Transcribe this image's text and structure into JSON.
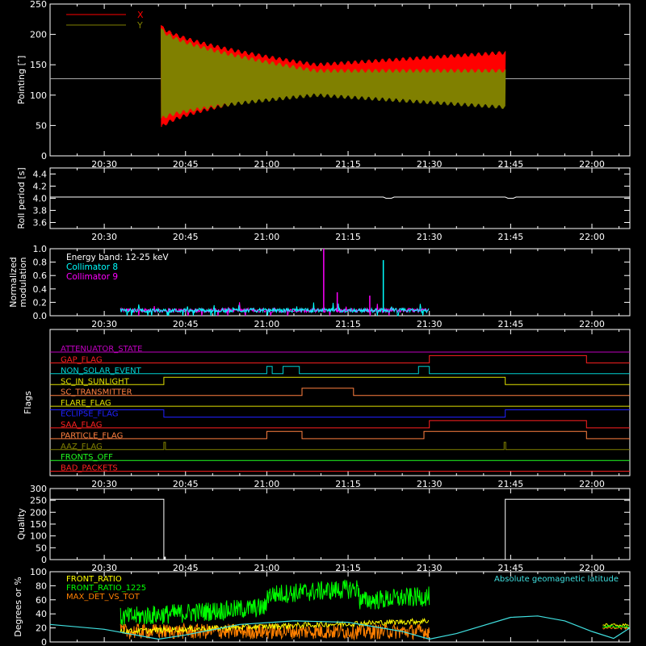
{
  "x_ticks": [
    "20:30",
    "20:45",
    "21:00",
    "21:15",
    "21:30",
    "21:45",
    "22:00"
  ],
  "x_tick_minutes": [
    30,
    45,
    60,
    75,
    90,
    105,
    120
  ],
  "x_range_minutes": [
    20,
    127
  ],
  "panels": {
    "pointing": {
      "ylabel": "Pointing [″]",
      "yticks": [
        "0",
        "50",
        "100",
        "150",
        "200",
        "250"
      ],
      "ylim": [
        0,
        250
      ],
      "legend": [
        {
          "label": "X",
          "color": "#ff0000"
        },
        {
          "label": "Y",
          "color": "#808000"
        }
      ]
    },
    "roll": {
      "ylabel": "Roll period [s]",
      "yticks": [
        "3.6",
        "3.8",
        "4.0",
        "4.2",
        "4.4"
      ],
      "ylim": [
        3.5,
        4.5
      ]
    },
    "modulation": {
      "ylabel_line1": "Normalized",
      "ylabel_line2": "modulation",
      "yticks": [
        "0.0",
        "0.2",
        "0.4",
        "0.6",
        "0.8",
        "1.0"
      ],
      "ylim": [
        0,
        1
      ],
      "legend": [
        {
          "label": "Energy band: 12-25 keV",
          "color": "#ffffff"
        },
        {
          "label": "Collimator 8",
          "color": "#00ffff"
        },
        {
          "label": "Collimator 9",
          "color": "#ff00ff"
        }
      ]
    },
    "flags": {
      "ylabel": "Flags",
      "names": [
        {
          "label": "ATTENUATOR_STATE",
          "color": "#c000c0"
        },
        {
          "label": "GAP_FLAG",
          "color": "#ff2020"
        },
        {
          "label": "NON_SOLAR_EVENT",
          "color": "#00d0d0"
        },
        {
          "label": "SC_IN_SUNLIGHT",
          "color": "#e0e000"
        },
        {
          "label": "SC_TRANSMITTER",
          "color": "#ff8040"
        },
        {
          "label": "FLARE_FLAG",
          "color": "#e0e000"
        },
        {
          "label": "ECLIPSE_FLAG",
          "color": "#2020ff"
        },
        {
          "label": "SAA_FLAG",
          "color": "#ff2020"
        },
        {
          "label": "PARTICLE_FLAG",
          "color": "#ff8040"
        },
        {
          "label": "AAZ_FLAG",
          "color": "#808000"
        },
        {
          "label": "FRONTS_OFF",
          "color": "#20ff20"
        },
        {
          "label": "BAD_PACKETS",
          "color": "#ff2020"
        }
      ]
    },
    "quality": {
      "ylabel": "Quality",
      "yticks": [
        "0",
        "50",
        "100",
        "150",
        "200",
        "250",
        "300"
      ],
      "ylim": [
        0,
        300
      ]
    },
    "bottom": {
      "ylabel": "Degrees or %",
      "yticks": [
        "0",
        "20",
        "40",
        "60",
        "80",
        "100"
      ],
      "ylim": [
        0,
        100
      ],
      "legend": [
        {
          "label": "FRONT_RATIO",
          "color": "#ffff00"
        },
        {
          "label": "FRONT_RATIO_1225",
          "color": "#00ff00"
        },
        {
          "label": "MAX_DET_VS_TOT",
          "color": "#ff8000"
        }
      ],
      "right_label": "Absolute geomagnetic latitude",
      "right_label_color": "#40e0e0"
    }
  },
  "chart_data": {
    "type": "line",
    "x_unit": "UT time (minutes after 20:00)",
    "pointing": {
      "time_range": [
        40.5,
        104
      ],
      "series": [
        {
          "name": "X",
          "color": "#ff0000",
          "start_range": [
            45,
            215
          ],
          "mid_range": [
            110,
            150
          ],
          "end_range": [
            120,
            170
          ]
        },
        {
          "name": "Y",
          "color": "#808000",
          "start_range": [
            60,
            210
          ],
          "mid_range": [
            100,
            140
          ],
          "end_range": [
            80,
            140
          ]
        }
      ],
      "baseline": 127
    },
    "roll_period": {
      "value": 4.02,
      "time_range": [
        20,
        127
      ]
    },
    "modulation": {
      "time_range": [
        33,
        90
      ],
      "typical": 0.08,
      "spikes": [
        {
          "series": "Collimator 9",
          "t": 70.5,
          "value": 1.0
        },
        {
          "series": "Collimator 8",
          "t": 81.5,
          "value": 0.83
        },
        {
          "series": "Collimator 9",
          "t": 73,
          "value": 0.35
        },
        {
          "series": "Collimator 9",
          "t": 79,
          "value": 0.3
        }
      ]
    },
    "flags_timeline": [
      {
        "name": "ATTENUATOR_STATE",
        "on": []
      },
      {
        "name": "GAP_FLAG",
        "on": [
          [
            90,
            119
          ]
        ]
      },
      {
        "name": "NON_SOLAR_EVENT",
        "on": [
          [
            60,
            61
          ],
          [
            63,
            66
          ],
          [
            88,
            90
          ]
        ]
      },
      {
        "name": "SC_IN_SUNLIGHT",
        "on": [
          [
            41,
            104
          ]
        ]
      },
      {
        "name": "SC_TRANSMITTER",
        "on": [
          [
            66.5,
            76
          ]
        ]
      },
      {
        "name": "FLARE_FLAG",
        "on": []
      },
      {
        "name": "ECLIPSE_FLAG",
        "on": [
          [
            20,
            41
          ],
          [
            104,
            127
          ]
        ]
      },
      {
        "name": "SAA_FLAG",
        "on": [
          [
            90,
            119
          ]
        ]
      },
      {
        "name": "PARTICLE_FLAG",
        "on": [
          [
            60,
            66.5
          ],
          [
            89,
            119
          ]
        ]
      },
      {
        "name": "AAZ_FLAG",
        "on": [
          [
            41,
            41.3
          ],
          [
            103.8,
            104.1
          ]
        ]
      },
      {
        "name": "FRONTS_OFF",
        "on": []
      },
      {
        "name": "BAD_PACKETS",
        "on": []
      }
    ],
    "quality": {
      "value": 255,
      "segments": [
        [
          20,
          41
        ],
        [
          104,
          127
        ]
      ]
    },
    "bottom": {
      "front_ratio": {
        "time_range": [
          33,
          90
        ],
        "start": 15,
        "end": 30
      },
      "front_ratio_1225": {
        "time_range": [
          33,
          90
        ],
        "start": 35,
        "end": 65
      },
      "max_det_vs_tot": {
        "time_range": [
          33,
          90
        ],
        "typical": 15
      },
      "geomag_latitude": [
        [
          20,
          25
        ],
        [
          30,
          18
        ],
        [
          40,
          4
        ],
        [
          45,
          10
        ],
        [
          55,
          25
        ],
        [
          65,
          30
        ],
        [
          75,
          28
        ],
        [
          85,
          15
        ],
        [
          90,
          4
        ],
        [
          95,
          12
        ],
        [
          105,
          35
        ],
        [
          110,
          37
        ],
        [
          115,
          30
        ],
        [
          120,
          15
        ],
        [
          124,
          5
        ],
        [
          127,
          20
        ]
      ]
    }
  }
}
